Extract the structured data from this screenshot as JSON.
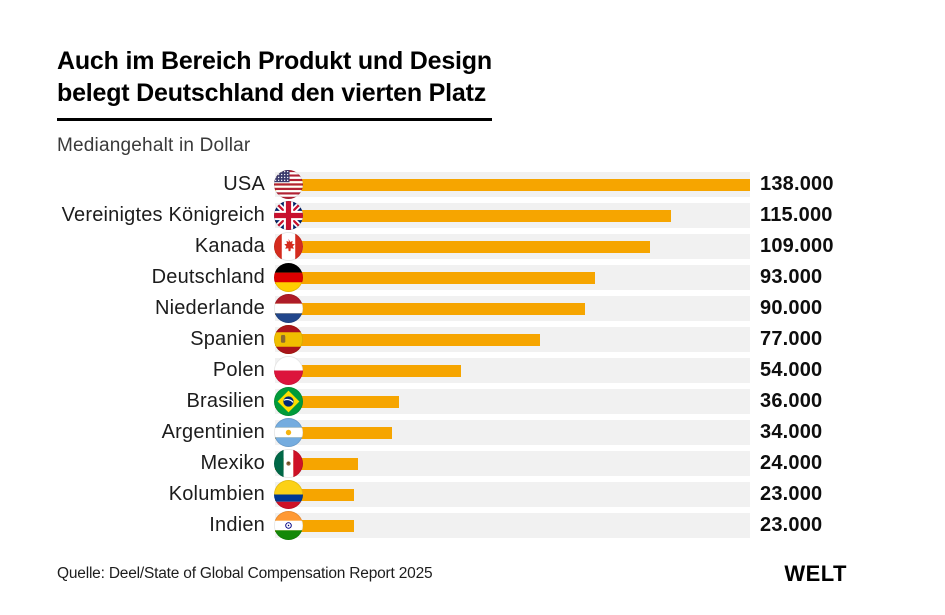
{
  "header": {
    "title_line1": "Auch im Bereich Produkt und Design",
    "title_line2": "belegt Deutschland den vierten Platz",
    "subtitle": "Mediangehalt in Dollar"
  },
  "chart_data": {
    "type": "bar",
    "orientation": "horizontal",
    "title": "Auch im Bereich Produkt und Design belegt Deutschland den vierten Platz",
    "subtitle": "Mediangehalt in Dollar",
    "xlabel": "Mediangehalt in Dollar",
    "xlim": [
      0,
      138000
    ],
    "grid": false,
    "legend": false,
    "categories": [
      "USA",
      "Vereinigtes Königreich",
      "Kanada",
      "Deutschland",
      "Niederlande",
      "Spanien",
      "Polen",
      "Brasilien",
      "Argentinien",
      "Mexiko",
      "Kolumbien",
      "Indien"
    ],
    "values": [
      138000,
      115000,
      109000,
      93000,
      90000,
      77000,
      54000,
      36000,
      34000,
      24000,
      23000,
      23000
    ],
    "value_labels": [
      "138.000",
      "115.000",
      "109.000",
      "93.000",
      "90.000",
      "77.000",
      "54.000",
      "36.000",
      "34.000",
      "24.000",
      "23.000",
      "23.000"
    ],
    "flag_icons": [
      "flag-usa-icon",
      "flag-uk-icon",
      "flag-canada-icon",
      "flag-germany-icon",
      "flag-netherlands-icon",
      "flag-spain-icon",
      "flag-poland-icon",
      "flag-brazil-icon",
      "flag-argentina-icon",
      "flag-mexico-icon",
      "flag-colombia-icon",
      "flag-india-icon"
    ],
    "bar_color": "#F6A500",
    "track_color": "#F1F1F1"
  },
  "footer": {
    "source": "Quelle: Deel/State of Global Compensation Report 2025",
    "logo": "WELT"
  }
}
